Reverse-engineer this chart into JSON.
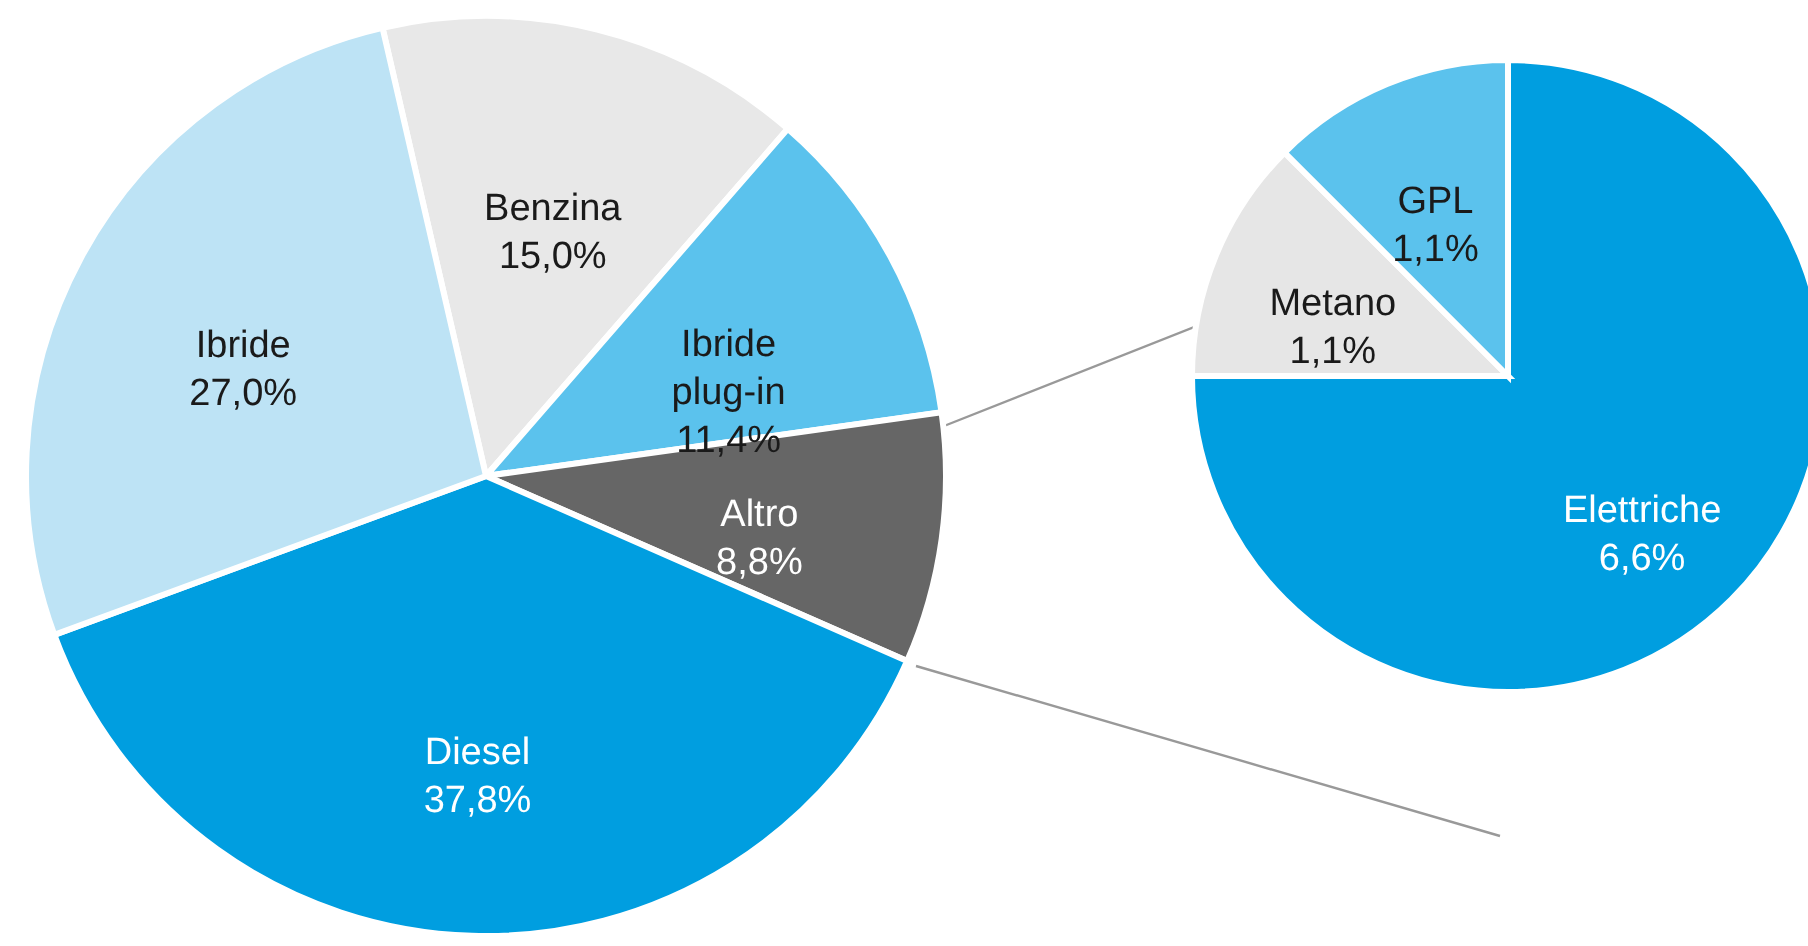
{
  "chart_data": [
    {
      "type": "pie",
      "categories": [
        "Benzina",
        "Ibride plug-in",
        "Altro",
        "Diesel",
        "Ibride"
      ],
      "values": [
        15.0,
        11.4,
        8.8,
        37.8,
        27.0
      ],
      "colors": [
        "#e8e8e8",
        "#5bc2ed",
        "#666666",
        "#009ee0",
        "#bde3f5"
      ],
      "value_labels": [
        "15,0%",
        "11,4%",
        "8,8%",
        "37,8%",
        "27,0%"
      ]
    },
    {
      "type": "pie",
      "categories": [
        "Elettriche",
        "Metano",
        "GPL"
      ],
      "values": [
        6.6,
        1.1,
        1.1
      ],
      "colors": [
        "#009ee0",
        "#e6e6e6",
        "#5bc2ed"
      ],
      "value_labels": [
        "6,6%",
        "1,1%",
        "1,1%"
      ]
    }
  ]
}
